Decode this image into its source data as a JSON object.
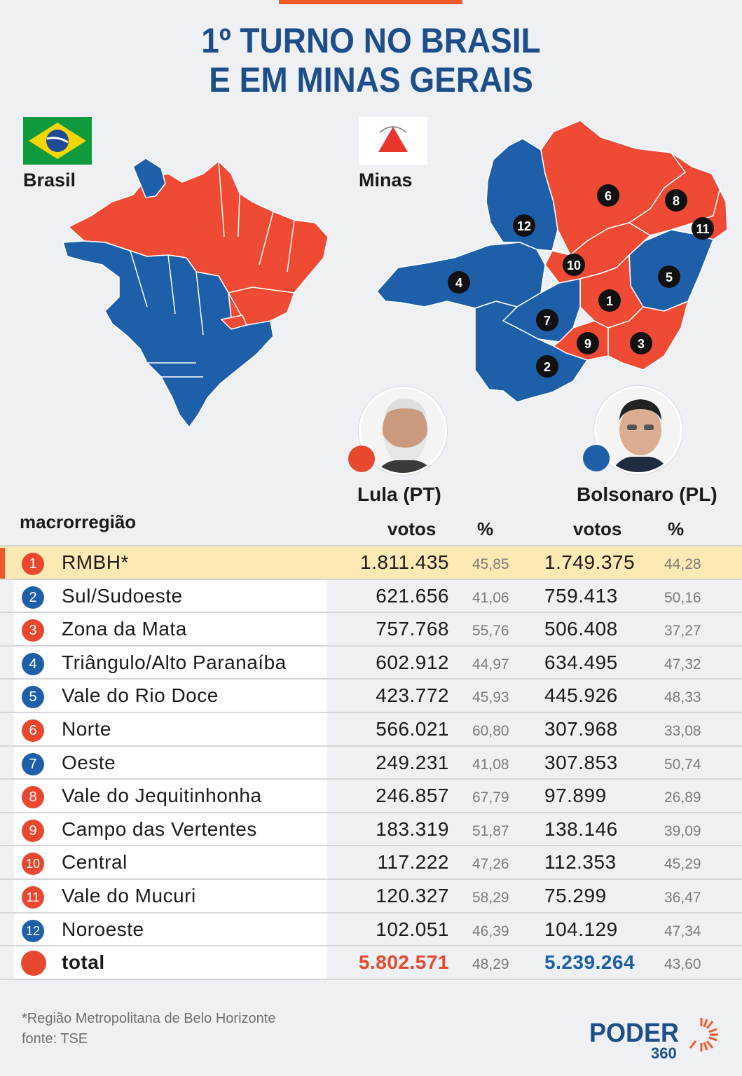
{
  "title_line1": "1º TURNO NO BRASIL",
  "title_line2": "E EM MINAS GERAIS",
  "map_labels": {
    "brasil": "Brasil",
    "minas": "Minas"
  },
  "colors": {
    "lula": "#e8482e",
    "bolsonaro": "#1d5fa8",
    "accent": "#f05a28",
    "title": "#1d4e89",
    "highlight": "#fde9b4"
  },
  "candidates": {
    "lula": {
      "name": "Lula (PT)"
    },
    "bolsonaro": {
      "name": "Bolsonaro (PL)"
    }
  },
  "table_headers": {
    "region": "macrorregião",
    "votes": "votos",
    "pct": "%"
  },
  "region_badges": [
    "1",
    "2",
    "3",
    "4",
    "5",
    "6",
    "7",
    "8",
    "9",
    "10",
    "11",
    "12"
  ],
  "chart_data": {
    "type": "table",
    "columns": [
      "macrorregião",
      "Lula (PT) votos",
      "Lula (PT) %",
      "Bolsonaro (PL) votos",
      "Bolsonaro (PL) %"
    ],
    "rows": [
      {
        "n": "1",
        "region": "RMBH*",
        "lula_votes": "1.811.435",
        "lula_pct": "45,85",
        "bolso_votes": "1.749.375",
        "bolso_pct": "44,28",
        "winner": "lula",
        "highlight": true
      },
      {
        "n": "2",
        "region": "Sul/Sudoeste",
        "lula_votes": "621.656",
        "lula_pct": "41,06",
        "bolso_votes": "759.413",
        "bolso_pct": "50,16",
        "winner": "bolsonaro"
      },
      {
        "n": "3",
        "region": "Zona da Mata",
        "lula_votes": "757.768",
        "lula_pct": "55,76",
        "bolso_votes": "506.408",
        "bolso_pct": "37,27",
        "winner": "lula"
      },
      {
        "n": "4",
        "region": "Triângulo/Alto Paranaíba",
        "lula_votes": "602.912",
        "lula_pct": "44,97",
        "bolso_votes": "634.495",
        "bolso_pct": "47,32",
        "winner": "bolsonaro"
      },
      {
        "n": "5",
        "region": "Vale do Rio Doce",
        "lula_votes": "423.772",
        "lula_pct": "45,93",
        "bolso_votes": "445.926",
        "bolso_pct": "48,33",
        "winner": "bolsonaro"
      },
      {
        "n": "6",
        "region": "Norte",
        "lula_votes": "566.021",
        "lula_pct": "60,80",
        "bolso_votes": "307.968",
        "bolso_pct": "33,08",
        "winner": "lula"
      },
      {
        "n": "7",
        "region": "Oeste",
        "lula_votes": "249.231",
        "lula_pct": "41,08",
        "bolso_votes": "307.853",
        "bolso_pct": "50,74",
        "winner": "bolsonaro"
      },
      {
        "n": "8",
        "region": "Vale do Jequitinhonha",
        "lula_votes": "246.857",
        "lula_pct": "67,79",
        "bolso_votes": "97.899",
        "bolso_pct": "26,89",
        "winner": "lula"
      },
      {
        "n": "9",
        "region": "Campo das Vertentes",
        "lula_votes": "183.319",
        "lula_pct": "51,87",
        "bolso_votes": "138.146",
        "bolso_pct": "39,09",
        "winner": "lula"
      },
      {
        "n": "10",
        "region": "Central",
        "lula_votes": "117.222",
        "lula_pct": "47,26",
        "bolso_votes": "112.353",
        "bolso_pct": "45,29",
        "winner": "lula"
      },
      {
        "n": "11",
        "region": "Vale do Mucuri",
        "lula_votes": "120.327",
        "lula_pct": "58,29",
        "bolso_votes": "75.299",
        "bolso_pct": "36,47",
        "winner": "lula"
      },
      {
        "n": "12",
        "region": "Noroeste",
        "lula_votes": "102.051",
        "lula_pct": "46,39",
        "bolso_votes": "104.129",
        "bolso_pct": "47,34",
        "winner": "bolsonaro"
      }
    ],
    "total": {
      "region": "total",
      "lula_votes": "5.802.571",
      "lula_pct": "48,29",
      "bolso_votes": "5.239.264",
      "bolso_pct": "43,60"
    }
  },
  "footnote": "*Região Metropolitana de Belo Horizonte",
  "source": "fonte: TSE",
  "logo": {
    "word": "PODER",
    "number": "360"
  }
}
